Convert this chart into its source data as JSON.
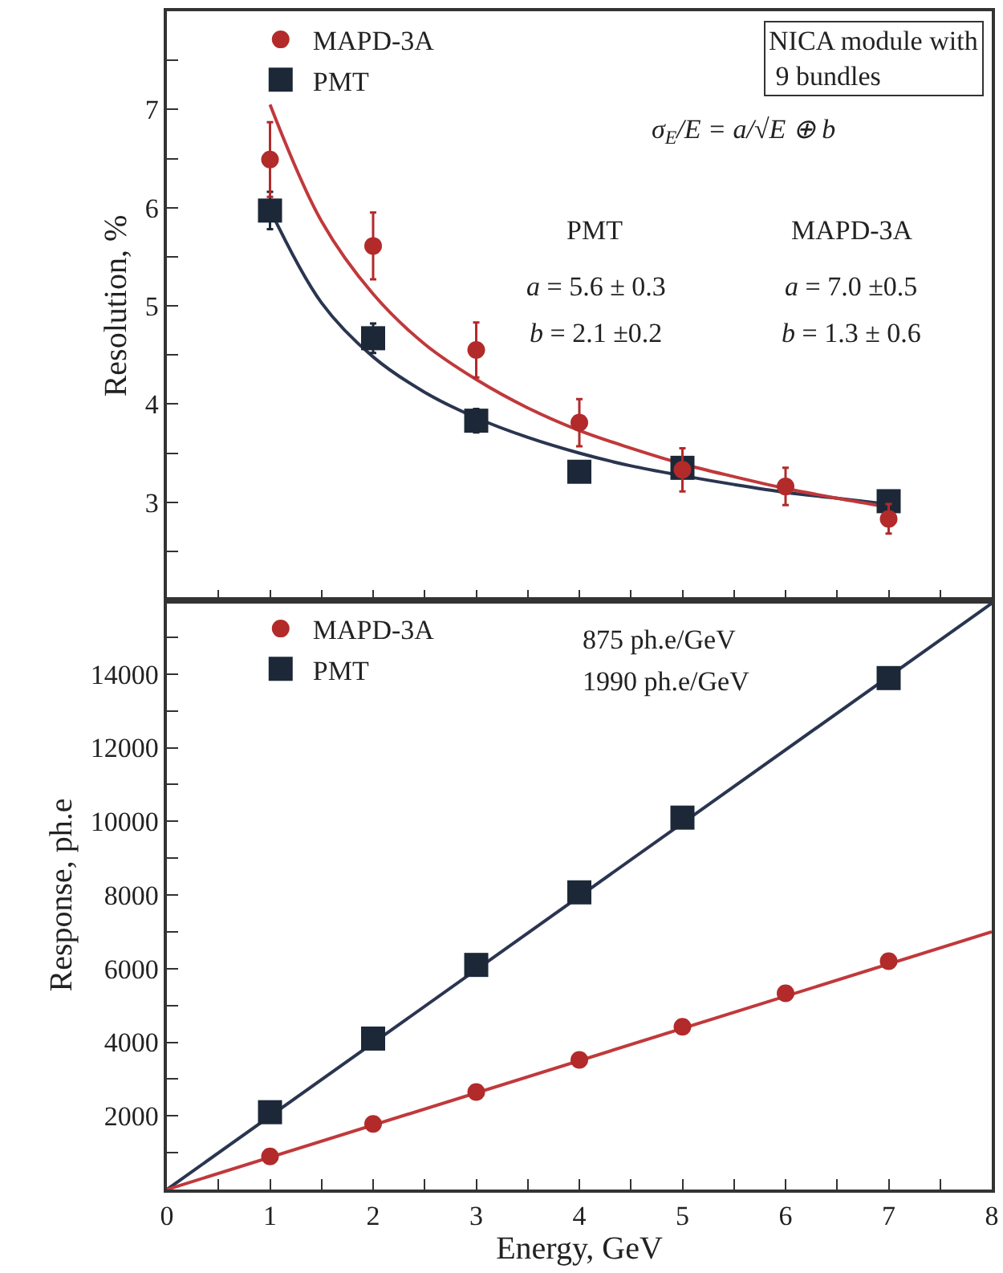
{
  "chart_data": [
    {
      "type": "scatter",
      "ylabel": "Resolution, %",
      "xlim": [
        0,
        8
      ],
      "ylim": [
        2,
        8
      ],
      "xticks": [
        {
          "value": 0,
          "label": null
        },
        {
          "value": 0.5,
          "label": null
        },
        {
          "value": 1,
          "label": null
        },
        {
          "value": 1.5,
          "label": null
        },
        {
          "value": 2,
          "label": null
        },
        {
          "value": 2.5,
          "label": null
        },
        {
          "value": 3,
          "label": null
        },
        {
          "value": 3.5,
          "label": null
        },
        {
          "value": 4,
          "label": null
        },
        {
          "value": 4.5,
          "label": null
        },
        {
          "value": 5,
          "label": null
        },
        {
          "value": 5.5,
          "label": null
        },
        {
          "value": 6,
          "label": null
        },
        {
          "value": 6.5,
          "label": null
        },
        {
          "value": 7,
          "label": null
        },
        {
          "value": 7.5,
          "label": null
        },
        {
          "value": 8,
          "label": null
        }
      ],
      "yticks": [
        {
          "value": 2.5,
          "label": null
        },
        3,
        {
          "value": 3.5,
          "label": null
        },
        4,
        {
          "value": 4.5,
          "label": null
        },
        5,
        {
          "value": 5.5,
          "label": null
        },
        6,
        {
          "value": 6.5,
          "label": null
        },
        7,
        {
          "value": 7.5,
          "label": null
        }
      ],
      "tick_labels": "y",
      "grid": false,
      "legend": "top left",
      "annotations": [
        "NICA module with\n 9 bundles",
        "σ$_{E}$/E = a/√E ⊕ b",
        "PMT",
        "MAPD-3A",
        "a = 5.6 ± 0.3",
        "b = 2.1 ±0.2",
        "a = 7.0 ±0.5",
        "b = 1.3 ± 0.6"
      ],
      "series": [
        {
          "name": "MAPD-3A",
          "color": "#b22a2a",
          "marker": "circle",
          "x": [
            1,
            2,
            3,
            4,
            5,
            6,
            7
          ],
          "values": [
            6.49,
            5.61,
            4.55,
            3.81,
            3.33,
            3.16,
            2.83
          ],
          "errors": [
            0.38,
            0.34,
            0.28,
            0.24,
            0.22,
            0.19,
            0.15
          ]
        },
        {
          "name": "PMT",
          "color": "#1c2838",
          "marker": "square",
          "x": [
            1,
            2,
            3,
            4,
            5,
            7
          ],
          "values": [
            5.97,
            4.67,
            3.83,
            3.31,
            3.35,
            3.01
          ],
          "errors": [
            0.19,
            0.15,
            0.12,
            0.1,
            0.1,
            0.08
          ]
        },
        {
          "color": "#c0393b",
          "type": "line",
          "marker": "none",
          "x": [
            1,
            1.5,
            2,
            2.5,
            3,
            3.5,
            4,
            4.5,
            5,
            5.5,
            6,
            6.5,
            7
          ],
          "values": [
            7.05,
            5.86,
            5.12,
            4.61,
            4.25,
            3.96,
            3.73,
            3.55,
            3.39,
            3.26,
            3.14,
            3.04,
            2.95
          ]
        },
        {
          "color": "#2a3550",
          "type": "line",
          "marker": "none",
          "x": [
            1,
            1.5,
            2,
            2.5,
            3,
            3.5,
            4,
            4.5,
            5,
            5.5,
            6,
            6.5,
            7
          ],
          "values": [
            5.98,
            5.03,
            4.48,
            4.12,
            3.86,
            3.66,
            3.5,
            3.37,
            3.27,
            3.18,
            3.1,
            3.04,
            2.98
          ]
        }
      ]
    },
    {
      "type": "scatter",
      "xlabel": "Energy, GeV",
      "ylabel": "Response, ph.e",
      "xlim": [
        0,
        8
      ],
      "ylim": [
        0,
        16000
      ],
      "xticks": [
        0,
        {
          "value": 0.5,
          "label": null
        },
        1,
        {
          "value": 1.5,
          "label": null
        },
        2,
        {
          "value": 2.5,
          "label": null
        },
        3,
        {
          "value": 3.5,
          "label": null
        },
        4,
        {
          "value": 4.5,
          "label": null
        },
        5,
        {
          "value": 5.5,
          "label": null
        },
        6,
        {
          "value": 6.5,
          "label": null
        },
        7,
        {
          "value": 7.5,
          "label": null
        },
        8
      ],
      "yticks": [
        {
          "value": 1000,
          "label": null
        },
        2000,
        {
          "value": 3000,
          "label": null
        },
        4000,
        {
          "value": 5000,
          "label": null
        },
        6000,
        {
          "value": 7000,
          "label": null
        },
        8000,
        {
          "value": 9000,
          "label": null
        },
        10000,
        {
          "value": 11000,
          "label": null
        },
        12000,
        {
          "value": 13000,
          "label": null
        },
        14000,
        {
          "value": 15000,
          "label": null
        }
      ],
      "grid": false,
      "legend": "top left",
      "annotations": [
        "875 ph.e/GeV",
        "1990 ph.e/GeV"
      ],
      "series": [
        {
          "name": "MAPD-3A",
          "color": "#b22a2a",
          "marker": "circle",
          "x": [
            1,
            2,
            3,
            4,
            5,
            6,
            7
          ],
          "values": [
            900,
            1780,
            2650,
            3520,
            4420,
            5330,
            6200
          ]
        },
        {
          "name": "PMT",
          "color": "#1c2838",
          "marker": "square",
          "x": [
            1,
            2,
            3,
            4,
            5,
            7
          ],
          "values": [
            2100,
            4100,
            6100,
            8070,
            10100,
            13890
          ]
        },
        {
          "color": "#c0393b",
          "type": "line",
          "marker": "none",
          "x": [
            0,
            8
          ],
          "values": [
            0,
            7000
          ]
        },
        {
          "color": "#2a3550",
          "type": "line",
          "marker": "none",
          "x": [
            0,
            8
          ],
          "values": [
            0,
            15920
          ]
        }
      ]
    }
  ]
}
